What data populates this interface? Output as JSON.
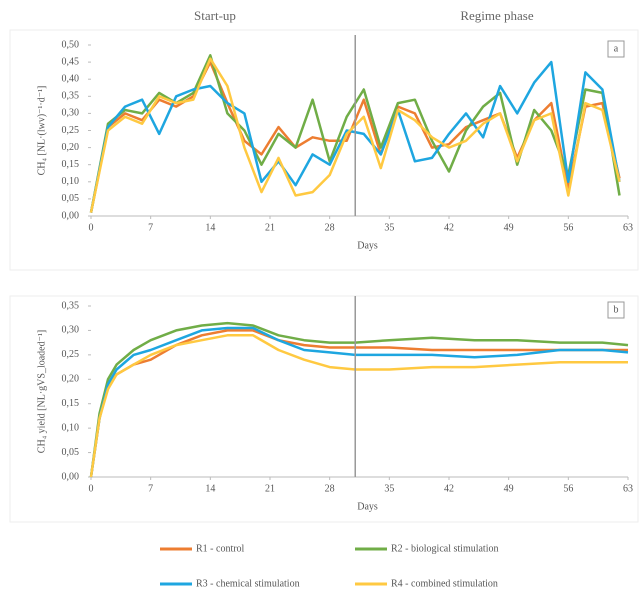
{
  "chart_data": [
    {
      "type": "line",
      "annotations": [
        "Start-up",
        "Regime phase"
      ],
      "panel_label": "a",
      "xlabel": "Days",
      "ylabel": "CH₄ [NL·(lwv)⁻¹·d⁻¹]",
      "phase_start": 31,
      "legend": "bottom",
      "x": [
        0,
        2,
        4,
        6,
        8,
        10,
        12,
        14,
        16,
        18,
        20,
        22,
        24,
        26,
        28,
        30,
        32,
        34,
        36,
        38,
        40,
        42,
        44,
        46,
        48,
        50,
        52,
        54,
        56,
        58,
        60,
        62
      ],
      "xlim": [
        0,
        63
      ],
      "xticks": [
        0,
        7,
        14,
        21,
        28,
        35,
        42,
        49,
        56,
        63
      ],
      "ylim": [
        0,
        0.5
      ],
      "yticks": [
        {
          "value": 0,
          "label": "0,00"
        },
        {
          "value": 0.05,
          "label": "0,05"
        },
        {
          "value": 0.1,
          "label": "0,10"
        },
        {
          "value": 0.15,
          "label": "0,15"
        },
        {
          "value": 0.2,
          "label": "0,20"
        },
        {
          "value": 0.25,
          "label": "0,25"
        },
        {
          "value": 0.3,
          "label": "0,30"
        },
        {
          "value": 0.35,
          "label": "0,35"
        },
        {
          "value": 0.4,
          "label": "0,40"
        },
        {
          "value": 0.45,
          "label": "0,45"
        },
        {
          "value": 0.5,
          "label": "0,50"
        }
      ],
      "series": [
        {
          "name": "R1 - control",
          "color": "#ed7d31",
          "values": [
            0.01,
            0.26,
            0.3,
            0.28,
            0.34,
            0.32,
            0.35,
            0.45,
            0.33,
            0.22,
            0.18,
            0.26,
            0.2,
            0.23,
            0.22,
            0.22,
            0.34,
            0.18,
            0.32,
            0.3,
            0.2,
            0.21,
            0.26,
            0.28,
            0.3,
            0.17,
            0.28,
            0.33,
            0.08,
            0.32,
            0.33,
            0.11
          ]
        },
        {
          "name": "R2 - biological stimulation",
          "color": "#70ad47",
          "values": [
            0.01,
            0.27,
            0.31,
            0.3,
            0.36,
            0.33,
            0.36,
            0.47,
            0.3,
            0.25,
            0.15,
            0.24,
            0.2,
            0.34,
            0.16,
            0.29,
            0.37,
            0.2,
            0.33,
            0.34,
            0.22,
            0.13,
            0.25,
            0.32,
            0.36,
            0.15,
            0.31,
            0.25,
            0.12,
            0.37,
            0.36,
            0.06
          ]
        },
        {
          "name": "R3 - chemical stimulation",
          "color": "#1ea6e0",
          "values": [
            0.01,
            0.26,
            0.32,
            0.34,
            0.24,
            0.35,
            0.37,
            0.38,
            0.33,
            0.3,
            0.1,
            0.16,
            0.09,
            0.18,
            0.15,
            0.25,
            0.24,
            0.18,
            0.31,
            0.16,
            0.17,
            0.24,
            0.3,
            0.23,
            0.38,
            0.3,
            0.39,
            0.45,
            0.1,
            0.42,
            0.37,
            0.1
          ]
        },
        {
          "name": "R4 - combined stimulation",
          "color": "#ffc941",
          "values": [
            0.01,
            0.25,
            0.29,
            0.27,
            0.35,
            0.33,
            0.34,
            0.46,
            0.38,
            0.2,
            0.07,
            0.17,
            0.06,
            0.07,
            0.12,
            0.24,
            0.29,
            0.14,
            0.31,
            0.28,
            0.23,
            0.2,
            0.22,
            0.27,
            0.3,
            0.16,
            0.28,
            0.3,
            0.06,
            0.33,
            0.31,
            0.1
          ]
        }
      ]
    },
    {
      "type": "line",
      "panel_label": "b",
      "xlabel": "Days",
      "ylabel": "CH₄ yield [NL·gVS_loaded⁻¹]",
      "phase_start": 31,
      "x": [
        0,
        1,
        2,
        3,
        5,
        7,
        10,
        13,
        16,
        19,
        22,
        25,
        28,
        31,
        35,
        40,
        45,
        50,
        55,
        60,
        63
      ],
      "xlim": [
        0,
        63
      ],
      "xticks": [
        0,
        7,
        14,
        21,
        28,
        35,
        42,
        49,
        56,
        63
      ],
      "ylim": [
        0,
        0.35
      ],
      "yticks": [
        {
          "value": 0,
          "label": "0,00"
        },
        {
          "value": 0.05,
          "label": "0,05"
        },
        {
          "value": 0.1,
          "label": "0,10"
        },
        {
          "value": 0.15,
          "label": "0,15"
        },
        {
          "value": 0.2,
          "label": "0,20"
        },
        {
          "value": 0.25,
          "label": "0,25"
        },
        {
          "value": 0.3,
          "label": "0,30"
        },
        {
          "value": 0.35,
          "label": "0,35"
        }
      ],
      "series": [
        {
          "color": "#ed7d31",
          "values": [
            0,
            0.12,
            0.19,
            0.21,
            0.23,
            0.24,
            0.27,
            0.29,
            0.3,
            0.3,
            0.28,
            0.27,
            0.265,
            0.265,
            0.265,
            0.26,
            0.26,
            0.26,
            0.26,
            0.26,
            0.26
          ]
        },
        {
          "color": "#70ad47",
          "values": [
            0,
            0.13,
            0.2,
            0.23,
            0.26,
            0.28,
            0.3,
            0.31,
            0.315,
            0.31,
            0.29,
            0.28,
            0.275,
            0.275,
            0.28,
            0.285,
            0.28,
            0.28,
            0.275,
            0.275,
            0.27
          ]
        },
        {
          "color": "#1ea6e0",
          "values": [
            0,
            0.12,
            0.19,
            0.22,
            0.25,
            0.26,
            0.28,
            0.3,
            0.305,
            0.305,
            0.28,
            0.26,
            0.255,
            0.25,
            0.25,
            0.25,
            0.245,
            0.25,
            0.26,
            0.26,
            0.255
          ]
        },
        {
          "color": "#ffc941",
          "values": [
            0,
            0.12,
            0.18,
            0.21,
            0.23,
            0.25,
            0.27,
            0.28,
            0.29,
            0.29,
            0.26,
            0.24,
            0.225,
            0.22,
            0.22,
            0.225,
            0.225,
            0.23,
            0.235,
            0.235,
            0.235
          ]
        }
      ]
    }
  ]
}
